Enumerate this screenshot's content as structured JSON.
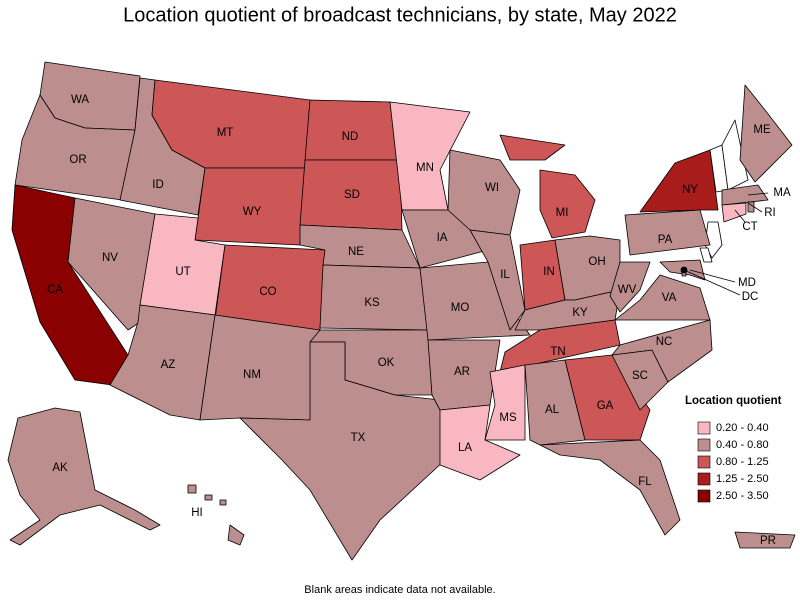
{
  "title": "Location quotient of broadcast technicians, by state, May 2022",
  "legend": {
    "title": "Location quotient",
    "ranges": [
      {
        "label": "0.20 - 0.40",
        "color": "#f9b8c1"
      },
      {
        "label": "0.40 - 0.80",
        "color": "#bc8e8e"
      },
      {
        "label": "0.80 - 1.25",
        "color": "#cd5656"
      },
      {
        "label": "1.25 - 2.50",
        "color": "#a81c1c"
      },
      {
        "label": "2.50 - 3.50",
        "color": "#8b0000"
      }
    ]
  },
  "states": [
    {
      "label": "WA",
      "range": 1
    },
    {
      "label": "OR",
      "range": 1
    },
    {
      "label": "CA",
      "range": 4
    },
    {
      "label": "NV",
      "range": 1
    },
    {
      "label": "ID",
      "range": 1
    },
    {
      "label": "MT",
      "range": 2
    },
    {
      "label": "WY",
      "range": 2
    },
    {
      "label": "UT",
      "range": 0
    },
    {
      "label": "AZ",
      "range": 1
    },
    {
      "label": "CO",
      "range": 2
    },
    {
      "label": "NM",
      "range": 1
    },
    {
      "label": "ND",
      "range": 2
    },
    {
      "label": "SD",
      "range": 2
    },
    {
      "label": "NE",
      "range": 1
    },
    {
      "label": "KS",
      "range": 1
    },
    {
      "label": "OK",
      "range": 1
    },
    {
      "label": "TX",
      "range": 1
    },
    {
      "label": "MN",
      "range": 0
    },
    {
      "label": "IA",
      "range": 1
    },
    {
      "label": "MO",
      "range": 1
    },
    {
      "label": "AR",
      "range": 1
    },
    {
      "label": "LA",
      "range": 0
    },
    {
      "label": "WI",
      "range": 1
    },
    {
      "label": "IL",
      "range": 1
    },
    {
      "label": "MI",
      "range": 2
    },
    {
      "label": "IN",
      "range": 2
    },
    {
      "label": "OH",
      "range": 1
    },
    {
      "label": "KY",
      "range": 1
    },
    {
      "label": "TN",
      "range": 2
    },
    {
      "label": "MS",
      "range": 0
    },
    {
      "label": "AL",
      "range": 1
    },
    {
      "label": "GA",
      "range": 2
    },
    {
      "label": "FL",
      "range": 1
    },
    {
      "label": "SC",
      "range": 1
    },
    {
      "label": "NC",
      "range": 1
    },
    {
      "label": "VA",
      "range": 1
    },
    {
      "label": "WV",
      "range": 1
    },
    {
      "label": "PA",
      "range": 1
    },
    {
      "label": "NY",
      "range": 3
    },
    {
      "label": "ME",
      "range": 1
    },
    {
      "label": "MA",
      "range": 1
    },
    {
      "label": "RI",
      "range": 1
    },
    {
      "label": "CT",
      "range": 0
    },
    {
      "label": "MD",
      "range": 1
    },
    {
      "label": "DC",
      "range": 1
    },
    {
      "label": "AK",
      "range": 1
    },
    {
      "label": "HI",
      "range": 1
    },
    {
      "label": "PR",
      "range": 1
    }
  ],
  "footnote": "Blank areas indicate data not available."
}
